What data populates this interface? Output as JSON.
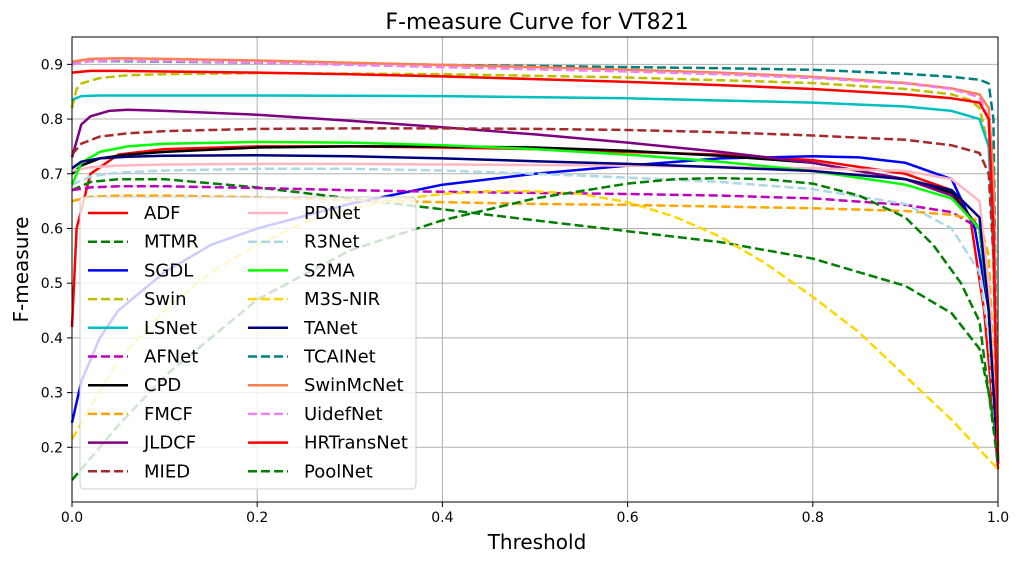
{
  "chart_data": {
    "type": "line",
    "title": "F-measure Curve for VT821",
    "xlabel": "Threshold",
    "ylabel": "F-measure",
    "xlim": [
      0.0,
      1.0
    ],
    "ylim": [
      0.1,
      0.95
    ],
    "xticks": [
      "0.0",
      "0.2",
      "0.4",
      "0.6",
      "0.8",
      "1.0"
    ],
    "yticks": [
      "0.2",
      "0.3",
      "0.4",
      "0.5",
      "0.6",
      "0.7",
      "0.8",
      "0.9"
    ],
    "grid": true,
    "legend_position": "lower-left",
    "series": [
      {
        "name": "ADF",
        "color": "#ff0000",
        "dash": false,
        "x": [
          0.0,
          0.005,
          0.02,
          0.05,
          0.1,
          0.2,
          0.3,
          0.4,
          0.5,
          0.6,
          0.7,
          0.8,
          0.9,
          0.95,
          0.97,
          0.985,
          0.993,
          1.0
        ],
        "y": [
          0.42,
          0.6,
          0.7,
          0.735,
          0.745,
          0.75,
          0.75,
          0.748,
          0.745,
          0.74,
          0.735,
          0.725,
          0.7,
          0.67,
          0.62,
          0.45,
          0.3,
          0.16
        ]
      },
      {
        "name": "MTMR",
        "color": "#007f00",
        "dash": true,
        "x": [
          0.0,
          0.02,
          0.05,
          0.1,
          0.2,
          0.3,
          0.4,
          0.5,
          0.6,
          0.7,
          0.8,
          0.9,
          0.95,
          0.98,
          0.99,
          1.0
        ],
        "y": [
          0.67,
          0.685,
          0.69,
          0.69,
          0.675,
          0.655,
          0.635,
          0.615,
          0.595,
          0.575,
          0.545,
          0.495,
          0.445,
          0.38,
          0.3,
          0.2
        ]
      },
      {
        "name": "SGDL",
        "color": "#0000ff",
        "dash": false,
        "x": [
          0.0,
          0.01,
          0.03,
          0.05,
          0.1,
          0.15,
          0.2,
          0.3,
          0.4,
          0.5,
          0.6,
          0.7,
          0.8,
          0.85,
          0.9,
          0.95,
          0.975,
          0.99,
          1.0
        ],
        "y": [
          0.245,
          0.32,
          0.4,
          0.45,
          0.52,
          0.57,
          0.6,
          0.645,
          0.68,
          0.7,
          0.715,
          0.728,
          0.732,
          0.73,
          0.72,
          0.69,
          0.6,
          0.45,
          0.18
        ]
      },
      {
        "name": "Swin",
        "color": "#bfbf00",
        "dash": true,
        "x": [
          0.0,
          0.005,
          0.01,
          0.03,
          0.06,
          0.1,
          0.2,
          0.4,
          0.6,
          0.8,
          0.9,
          0.95,
          0.97,
          0.98,
          0.99,
          0.995,
          1.0
        ],
        "y": [
          0.82,
          0.855,
          0.865,
          0.875,
          0.88,
          0.882,
          0.884,
          0.882,
          0.876,
          0.866,
          0.855,
          0.845,
          0.835,
          0.82,
          0.75,
          0.6,
          0.2
        ]
      },
      {
        "name": "LSNet",
        "color": "#00bfbf",
        "dash": false,
        "x": [
          0.0,
          0.01,
          0.03,
          0.1,
          0.2,
          0.4,
          0.6,
          0.8,
          0.9,
          0.95,
          0.98,
          0.99,
          0.995,
          1.0
        ],
        "y": [
          0.835,
          0.842,
          0.843,
          0.843,
          0.843,
          0.842,
          0.838,
          0.83,
          0.823,
          0.815,
          0.8,
          0.75,
          0.55,
          0.2
        ]
      },
      {
        "name": "AFNet",
        "color": "#bf00bf",
        "dash": true,
        "x": [
          0.0,
          0.02,
          0.05,
          0.1,
          0.2,
          0.3,
          0.4,
          0.5,
          0.6,
          0.7,
          0.8,
          0.9,
          0.95,
          0.98,
          0.99,
          1.0
        ],
        "y": [
          0.67,
          0.675,
          0.677,
          0.677,
          0.674,
          0.67,
          0.667,
          0.665,
          0.663,
          0.66,
          0.655,
          0.643,
          0.63,
          0.6,
          0.45,
          0.17
        ]
      },
      {
        "name": "CPD",
        "color": "#000000",
        "dash": false,
        "x": [
          0.0,
          0.01,
          0.03,
          0.06,
          0.1,
          0.2,
          0.3,
          0.4,
          0.5,
          0.6,
          0.7,
          0.8,
          0.9,
          0.95,
          0.98,
          0.99,
          1.0
        ],
        "y": [
          0.7,
          0.715,
          0.728,
          0.735,
          0.74,
          0.748,
          0.75,
          0.75,
          0.748,
          0.742,
          0.733,
          0.72,
          0.69,
          0.665,
          0.6,
          0.45,
          0.17
        ]
      },
      {
        "name": "FMCF",
        "color": "#ffa500",
        "dash": true,
        "x": [
          0.0,
          0.02,
          0.05,
          0.1,
          0.2,
          0.3,
          0.4,
          0.5,
          0.6,
          0.7,
          0.8,
          0.9,
          0.95,
          0.98,
          0.99,
          1.0
        ],
        "y": [
          0.65,
          0.658,
          0.66,
          0.66,
          0.657,
          0.652,
          0.648,
          0.645,
          0.643,
          0.64,
          0.637,
          0.632,
          0.625,
          0.615,
          0.55,
          0.17
        ]
      },
      {
        "name": "JLDCF",
        "color": "#7f007f",
        "dash": false,
        "x": [
          0.0,
          0.01,
          0.02,
          0.04,
          0.06,
          0.1,
          0.2,
          0.3,
          0.4,
          0.5,
          0.6,
          0.7,
          0.8,
          0.9,
          0.95,
          0.98,
          0.99,
          1.0
        ],
        "y": [
          0.73,
          0.79,
          0.805,
          0.815,
          0.817,
          0.815,
          0.808,
          0.797,
          0.785,
          0.772,
          0.757,
          0.74,
          0.72,
          0.69,
          0.66,
          0.6,
          0.45,
          0.17
        ]
      },
      {
        "name": "MIED",
        "color": "#a52a2a",
        "dash": true,
        "x": [
          0.0,
          0.01,
          0.03,
          0.06,
          0.1,
          0.2,
          0.3,
          0.4,
          0.5,
          0.6,
          0.7,
          0.8,
          0.9,
          0.95,
          0.98,
          0.99,
          0.995,
          1.0
        ],
        "y": [
          0.735,
          0.755,
          0.768,
          0.774,
          0.778,
          0.782,
          0.783,
          0.783,
          0.782,
          0.78,
          0.776,
          0.77,
          0.762,
          0.752,
          0.738,
          0.7,
          0.55,
          0.17
        ]
      },
      {
        "name": "PDNet",
        "color": "#ffb6c1",
        "dash": false,
        "x": [
          0.0,
          0.02,
          0.05,
          0.1,
          0.2,
          0.3,
          0.4,
          0.5,
          0.6,
          0.7,
          0.8,
          0.9,
          0.95,
          0.98,
          0.99,
          1.0
        ],
        "y": [
          0.705,
          0.712,
          0.715,
          0.717,
          0.718,
          0.718,
          0.717,
          0.716,
          0.715,
          0.713,
          0.71,
          0.705,
          0.69,
          0.65,
          0.5,
          0.17
        ]
      },
      {
        "name": "R3Net",
        "color": "#add8e6",
        "dash": true,
        "x": [
          0.0,
          0.02,
          0.05,
          0.1,
          0.2,
          0.3,
          0.4,
          0.5,
          0.6,
          0.7,
          0.8,
          0.9,
          0.95,
          0.98,
          0.99,
          1.0
        ],
        "y": [
          0.68,
          0.695,
          0.702,
          0.706,
          0.709,
          0.709,
          0.706,
          0.7,
          0.693,
          0.685,
          0.672,
          0.645,
          0.6,
          0.52,
          0.4,
          0.17
        ]
      },
      {
        "name": "S2MA",
        "color": "#00ff00",
        "dash": false,
        "x": [
          0.0,
          0.01,
          0.03,
          0.06,
          0.1,
          0.2,
          0.3,
          0.4,
          0.5,
          0.6,
          0.7,
          0.8,
          0.9,
          0.95,
          0.98,
          0.99,
          1.0
        ],
        "y": [
          0.68,
          0.72,
          0.74,
          0.75,
          0.755,
          0.758,
          0.757,
          0.752,
          0.745,
          0.735,
          0.722,
          0.705,
          0.68,
          0.655,
          0.6,
          0.45,
          0.17
        ]
      },
      {
        "name": "M3S-NIR",
        "color": "#ffd700",
        "dash": true,
        "x": [
          0.0,
          0.05,
          0.1,
          0.15,
          0.2,
          0.25,
          0.3,
          0.35,
          0.4,
          0.45,
          0.5,
          0.55,
          0.6,
          0.65,
          0.7,
          0.75,
          0.8,
          0.85,
          0.9,
          0.95,
          1.0
        ],
        "y": [
          0.215,
          0.36,
          0.45,
          0.52,
          0.57,
          0.61,
          0.635,
          0.653,
          0.663,
          0.668,
          0.668,
          0.663,
          0.648,
          0.622,
          0.585,
          0.535,
          0.475,
          0.41,
          0.33,
          0.25,
          0.16
        ]
      },
      {
        "name": "TANet",
        "color": "#00007f",
        "dash": false,
        "x": [
          0.0,
          0.01,
          0.03,
          0.06,
          0.1,
          0.2,
          0.3,
          0.4,
          0.5,
          0.6,
          0.7,
          0.8,
          0.9,
          0.95,
          0.98,
          0.99,
          1.0
        ],
        "y": [
          0.71,
          0.722,
          0.728,
          0.731,
          0.733,
          0.734,
          0.732,
          0.728,
          0.723,
          0.718,
          0.712,
          0.705,
          0.69,
          0.67,
          0.62,
          0.45,
          0.17
        ]
      },
      {
        "name": "TCAINet",
        "color": "#007f7f",
        "dash": true,
        "x": [
          0.0,
          0.02,
          0.05,
          0.1,
          0.2,
          0.3,
          0.4,
          0.5,
          0.6,
          0.7,
          0.8,
          0.9,
          0.95,
          0.98,
          0.99,
          0.995,
          1.0
        ],
        "y": [
          0.905,
          0.906,
          0.906,
          0.905,
          0.903,
          0.901,
          0.899,
          0.897,
          0.895,
          0.893,
          0.89,
          0.883,
          0.877,
          0.872,
          0.865,
          0.8,
          0.17
        ]
      },
      {
        "name": "SwinMcNet",
        "color": "#ff7f50",
        "dash": false,
        "x": [
          0.0,
          0.02,
          0.05,
          0.1,
          0.2,
          0.3,
          0.4,
          0.5,
          0.6,
          0.7,
          0.8,
          0.9,
          0.95,
          0.98,
          0.99,
          0.995,
          1.0
        ],
        "y": [
          0.905,
          0.91,
          0.911,
          0.91,
          0.907,
          0.903,
          0.899,
          0.895,
          0.89,
          0.885,
          0.877,
          0.866,
          0.856,
          0.845,
          0.82,
          0.7,
          0.17
        ]
      },
      {
        "name": "UidefNet",
        "color": "#ee82ee",
        "dash": true,
        "x": [
          0.0,
          0.02,
          0.05,
          0.1,
          0.2,
          0.3,
          0.4,
          0.5,
          0.6,
          0.7,
          0.8,
          0.9,
          0.95,
          0.98,
          0.99,
          0.995,
          1.0
        ],
        "y": [
          0.9,
          0.906,
          0.907,
          0.906,
          0.903,
          0.899,
          0.895,
          0.891,
          0.887,
          0.882,
          0.875,
          0.865,
          0.855,
          0.84,
          0.8,
          0.6,
          0.17
        ]
      },
      {
        "name": "HRTransNet",
        "color": "#ff0000",
        "dash": false,
        "x": [
          0.0,
          0.02,
          0.05,
          0.1,
          0.2,
          0.3,
          0.4,
          0.5,
          0.6,
          0.7,
          0.8,
          0.9,
          0.95,
          0.98,
          0.99,
          0.995,
          1.0
        ],
        "y": [
          0.885,
          0.888,
          0.888,
          0.887,
          0.885,
          0.882,
          0.878,
          0.873,
          0.868,
          0.862,
          0.855,
          0.845,
          0.838,
          0.83,
          0.8,
          0.6,
          0.17
        ]
      },
      {
        "name": "PoolNet",
        "color": "#007f00",
        "dash": true,
        "x": [
          0.0,
          0.05,
          0.1,
          0.2,
          0.3,
          0.4,
          0.5,
          0.6,
          0.65,
          0.7,
          0.75,
          0.8,
          0.85,
          0.9,
          0.93,
          0.96,
          0.98,
          0.99,
          1.0
        ],
        "y": [
          0.14,
          0.24,
          0.33,
          0.47,
          0.56,
          0.615,
          0.655,
          0.682,
          0.69,
          0.692,
          0.69,
          0.682,
          0.66,
          0.62,
          0.57,
          0.5,
          0.43,
          0.3,
          0.17
        ]
      }
    ]
  }
}
